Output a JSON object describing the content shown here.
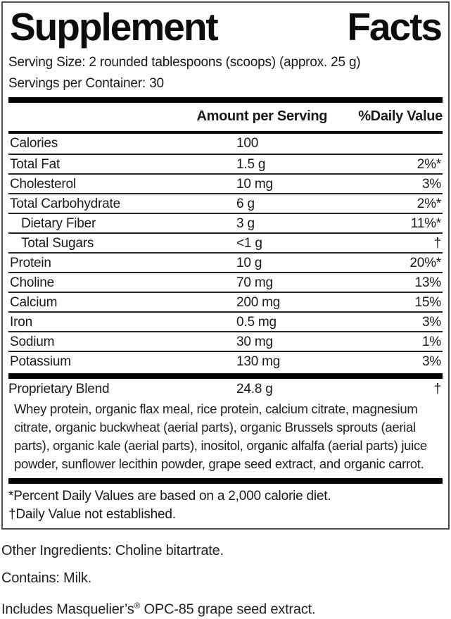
{
  "colors": {
    "ink": "#0d0d0d",
    "bar": "#000000",
    "box_border": "#4d4d4d"
  },
  "label": {
    "title_left": "Supplement",
    "title_right": "Facts",
    "serving_size": "Serving Size: 2 rounded tablespoons (scoops) (approx. 25 g)",
    "servings_per_container": "Servings per Container: 30",
    "columns": {
      "amount": "Amount per Serving",
      "daily_value": "%Daily Value"
    },
    "rows": [
      {
        "name": "Calories",
        "amount": "100",
        "dv": ""
      },
      {
        "name": "Total Fat",
        "amount": "1.5 g",
        "dv": "2%*"
      },
      {
        "name": "Cholesterol",
        "amount": "10 mg",
        "dv": "3%"
      },
      {
        "name": "Total Carbohydrate",
        "amount": "6 g",
        "dv": "2%*"
      },
      {
        "name": "Dietary Fiber",
        "amount": "3 g",
        "dv": "11%*",
        "indent": true
      },
      {
        "name": "Total Sugars",
        "amount": "<1 g",
        "dv": "†",
        "indent": true
      },
      {
        "name": "Protein",
        "amount": "10 g",
        "dv": "20%*"
      },
      {
        "name": "Choline",
        "amount": "70 mg",
        "dv": "13%"
      },
      {
        "name": "Calcium",
        "amount": "200 mg",
        "dv": "15%"
      },
      {
        "name": "Iron",
        "amount": "0.5 mg",
        "dv": "3%"
      },
      {
        "name": "Sodium",
        "amount": "30 mg",
        "dv": "1%"
      },
      {
        "name": "Potassium",
        "amount": "130 mg",
        "dv": "3%"
      }
    ],
    "blend": {
      "name": "Proprietary Blend",
      "amount": "24.8 g",
      "dv": "†",
      "description": "Whey protein, organic flax meal, rice protein, calcium citrate, magnesium citrate, organic buckwheat (aerial parts), organic Brussels sprouts (aerial parts), organic kale (aerial parts), inositol, organic alfalfa (aerial parts) juice powder, sunflower lecithin powder, grape seed extract, and organic carrot."
    },
    "footnote_dv": "*Percent Daily Values are based on a 2,000 calorie diet.",
    "footnote_dagger": "†Daily Value not established."
  },
  "below": {
    "other_ingredients": "Other Ingredients: Choline bitartrate.",
    "contains": "Contains: Milk.",
    "includes_pre": "Includes Masquelier’s",
    "includes_reg": "®",
    "includes_post": " OPC-85 grape seed extract."
  }
}
